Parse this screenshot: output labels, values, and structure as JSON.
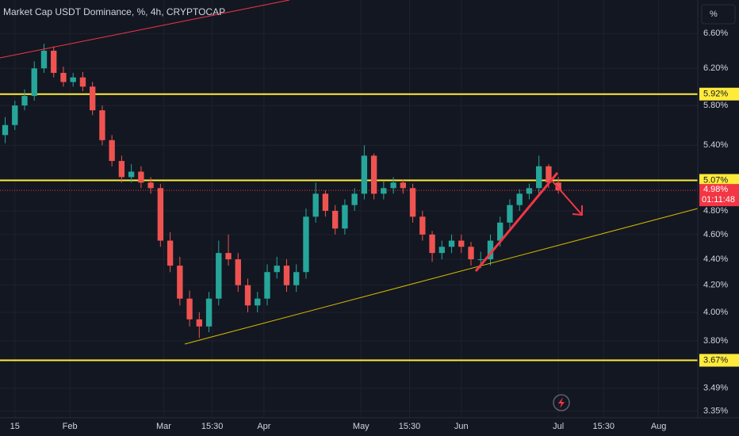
{
  "chart_data": {
    "type": "candlestick",
    "title": "Market Cap USDT Dominance, %, 4h, CRYPTOCAP",
    "y_axis_unit": "%",
    "log_scale": true,
    "grid": true,
    "up_color": "#26a69a",
    "down_color": "#ef5350",
    "level_color": "#ffeb3b",
    "xlim": [
      9.4,
      225.1
    ],
    "ylim": [
      3.31,
      7.01
    ],
    "xticks": [
      {
        "value": 14,
        "label": "15"
      },
      {
        "value": 31,
        "label": "Feb"
      },
      {
        "value": 60,
        "label": "Mar"
      },
      {
        "value": 75,
        "label": "15:30"
      },
      {
        "value": 91,
        "label": "Apr"
      },
      {
        "value": 121,
        "label": "May"
      },
      {
        "value": 136,
        "label": "15:30"
      },
      {
        "value": 152,
        "label": "Jun"
      },
      {
        "value": 182,
        "label": "Jul"
      },
      {
        "value": 196,
        "label": "15:30"
      },
      {
        "value": 213,
        "label": "Aug"
      }
    ],
    "yticks": [
      {
        "value": 3.35,
        "label": "3.35%"
      },
      {
        "value": 3.49,
        "label": "3.49%"
      },
      {
        "value": 3.8,
        "label": "3.80%"
      },
      {
        "value": 4.0,
        "label": "4.00%"
      },
      {
        "value": 4.2,
        "label": "4.20%"
      },
      {
        "value": 4.4,
        "label": "4.40%"
      },
      {
        "value": 4.6,
        "label": "4.60%"
      },
      {
        "value": 4.8,
        "label": "4.80%"
      },
      {
        "value": 5.4,
        "label": "5.40%"
      },
      {
        "value": 5.8,
        "label": "5.80%"
      },
      {
        "value": 6.2,
        "label": "6.20%"
      },
      {
        "value": 6.6,
        "label": "6.60%"
      }
    ],
    "levels": [
      {
        "value": 5.92,
        "label": "5.92%"
      },
      {
        "value": 5.07,
        "label": "5.07%"
      },
      {
        "value": 3.67,
        "label": "3.67%"
      }
    ],
    "last_price": {
      "value": 4.98,
      "label": "4.98%",
      "countdown": "01:11:48",
      "color": "#f23645"
    },
    "x": [
      11,
      14,
      17,
      20,
      23,
      26,
      29,
      32,
      35,
      38,
      41,
      44,
      47,
      50,
      53,
      56,
      59,
      62,
      65,
      68,
      71,
      74,
      77,
      80,
      83,
      86,
      89,
      92,
      95,
      98,
      101,
      104,
      107,
      110,
      113,
      116,
      119,
      122,
      125,
      128,
      131,
      134,
      137,
      140,
      143,
      146,
      149,
      152,
      155,
      158,
      161,
      164,
      167,
      170,
      173,
      176,
      179,
      182
    ],
    "open": [
      5.5,
      5.6,
      5.8,
      5.9,
      6.2,
      6.4,
      6.15,
      6.05,
      6.1,
      6.0,
      5.75,
      5.45,
      5.25,
      5.1,
      5.15,
      5.05,
      5.0,
      4.55,
      4.35,
      4.1,
      3.95,
      3.9,
      4.1,
      4.45,
      4.4,
      4.2,
      4.05,
      4.1,
      4.3,
      4.35,
      4.2,
      4.3,
      4.75,
      4.95,
      4.8,
      4.65,
      4.85,
      4.95,
      5.3,
      4.95,
      5.0,
      5.05,
      5.0,
      4.75,
      4.6,
      4.45,
      4.5,
      4.55,
      4.5,
      4.4,
      4.4,
      4.55,
      4.7,
      4.85,
      4.95,
      5.0,
      5.2,
      5.05
    ],
    "high": [
      5.68,
      5.85,
      5.97,
      6.28,
      6.48,
      6.45,
      6.22,
      6.15,
      6.16,
      6.05,
      5.8,
      5.5,
      5.3,
      5.22,
      5.2,
      5.1,
      5.04,
      4.62,
      4.42,
      4.16,
      4.0,
      4.15,
      4.55,
      4.6,
      4.45,
      4.25,
      4.15,
      4.36,
      4.42,
      4.4,
      4.36,
      4.82,
      5.05,
      4.98,
      4.85,
      4.9,
      5.0,
      5.4,
      5.32,
      5.06,
      5.1,
      5.08,
      5.04,
      4.8,
      4.63,
      4.55,
      4.6,
      4.6,
      4.54,
      4.46,
      4.6,
      4.75,
      4.9,
      4.99,
      5.04,
      5.3,
      5.22,
      5.1
    ],
    "low": [
      5.42,
      5.55,
      5.75,
      5.85,
      6.15,
      6.1,
      6.0,
      6.0,
      5.95,
      5.7,
      5.4,
      5.2,
      5.05,
      5.05,
      5.0,
      4.95,
      4.5,
      4.3,
      4.05,
      3.9,
      3.82,
      3.86,
      4.05,
      4.35,
      4.15,
      4.0,
      4.0,
      4.05,
      4.25,
      4.15,
      4.15,
      4.25,
      4.7,
      4.75,
      4.6,
      4.6,
      4.8,
      4.9,
      4.9,
      4.9,
      4.95,
      4.95,
      4.7,
      4.55,
      4.38,
      4.4,
      4.45,
      4.45,
      4.35,
      4.33,
      4.35,
      4.5,
      4.65,
      4.8,
      4.9,
      4.95,
      5.0,
      4.95
    ],
    "close": [
      5.6,
      5.8,
      5.9,
      6.2,
      6.4,
      6.15,
      6.05,
      6.1,
      6.0,
      5.75,
      5.45,
      5.25,
      5.1,
      5.15,
      5.05,
      5.0,
      4.55,
      4.35,
      4.1,
      3.95,
      3.9,
      4.1,
      4.45,
      4.4,
      4.2,
      4.05,
      4.1,
      4.3,
      4.35,
      4.2,
      4.3,
      4.75,
      4.95,
      4.8,
      4.65,
      4.85,
      4.95,
      5.3,
      4.95,
      5.0,
      5.05,
      5.0,
      4.75,
      4.6,
      4.45,
      4.5,
      4.55,
      4.5,
      4.4,
      4.4,
      4.55,
      4.7,
      4.85,
      4.95,
      5.0,
      5.2,
      5.05,
      4.98
    ]
  }
}
